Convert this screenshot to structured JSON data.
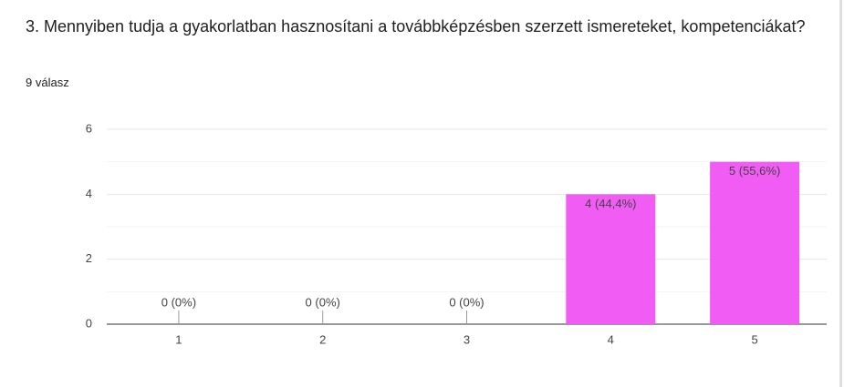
{
  "chart_data": {
    "type": "bar",
    "title": "3. Mennyiben tudja a gyakorlatban hasznosítani a továbbképzésben szerzett ismereteket, kompetenciákat?",
    "subtitle": "9 válasz",
    "categories": [
      "1",
      "2",
      "3",
      "4",
      "5"
    ],
    "values": [
      0,
      0,
      0,
      4,
      5
    ],
    "value_labels": [
      "0 (0%)",
      "0 (0%)",
      "0 (0%)",
      "4 (44,4%)",
      "5 (55,6%)"
    ],
    "color": "#f15cf5",
    "ylim": [
      0,
      6
    ],
    "yticks": [
      0,
      2,
      4,
      6
    ],
    "minor_yticks": [
      1,
      3,
      5
    ],
    "grid": true
  }
}
